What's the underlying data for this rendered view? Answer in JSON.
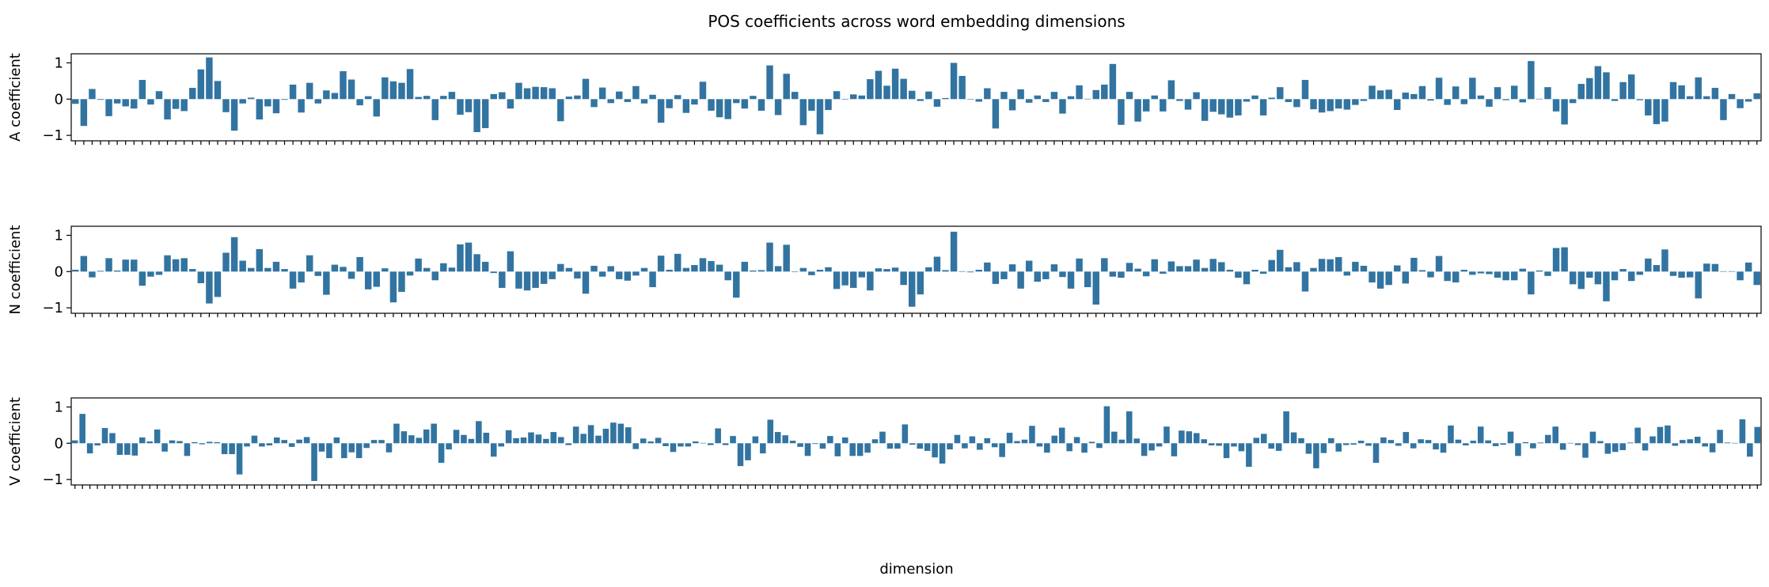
{
  "figure": {
    "title": "POS coefficients across word embedding dimensions",
    "xlabel": "dimension"
  },
  "colors": {
    "bar": "#3274a1"
  },
  "chart_data": [
    {
      "type": "bar",
      "ylabel": "A coefficient",
      "ylim": [
        -1.15,
        1.25
      ],
      "yticks": [
        -1,
        0,
        1
      ],
      "grid": false,
      "values": [
        -0.13,
        -0.74,
        0.28,
        -0.02,
        -0.47,
        -0.12,
        -0.2,
        -0.26,
        0.53,
        -0.15,
        0.22,
        -0.56,
        -0.27,
        -0.33,
        0.31,
        0.82,
        1.15,
        0.5,
        -0.36,
        -0.87,
        -0.12,
        0.04,
        -0.56,
        -0.2,
        -0.39,
        -0.02,
        0.4,
        -0.37,
        0.45,
        -0.12,
        0.24,
        0.17,
        0.77,
        0.54,
        -0.17,
        0.08,
        -0.48,
        0.6,
        0.49,
        0.45,
        0.83,
        0.06,
        0.09,
        -0.58,
        0.09,
        0.2,
        -0.43,
        -0.36,
        -0.91,
        -0.8,
        0.14,
        0.19,
        -0.26,
        0.45,
        0.3,
        0.34,
        0.33,
        0.3,
        -0.61,
        0.07,
        0.1,
        0.56,
        -0.22,
        0.32,
        -0.11,
        0.21,
        -0.08,
        0.36,
        -0.12,
        0.12,
        -0.65,
        -0.25,
        0.11,
        -0.38,
        -0.15,
        0.48,
        -0.32,
        -0.5,
        -0.55,
        -0.11,
        -0.26,
        0.09,
        -0.32,
        0.93,
        -0.44,
        0.7,
        0.2,
        -0.72,
        -0.32,
        -0.97,
        -0.3,
        0.22,
        -0.01,
        0.13,
        0.1,
        0.55,
        0.78,
        0.37,
        0.84,
        0.56,
        0.23,
        -0.05,
        0.21,
        -0.21,
        0.03,
        1.0,
        0.64,
        -0.01,
        -0.07,
        0.3,
        -0.81,
        0.2,
        -0.31,
        0.27,
        -0.1,
        0.1,
        -0.08,
        0.2,
        -0.4,
        0.08,
        0.38,
        0.01,
        0.25,
        0.4,
        0.97,
        -0.71,
        0.2,
        -0.62,
        -0.34,
        0.1,
        -0.34,
        0.52,
        -0.05,
        -0.29,
        0.19,
        -0.6,
        -0.35,
        -0.42,
        -0.51,
        -0.45,
        -0.07,
        0.1,
        -0.45,
        0.04,
        0.33,
        -0.08,
        -0.22,
        0.53,
        -0.28,
        -0.37,
        -0.33,
        -0.26,
        -0.29,
        -0.16,
        -0.05,
        0.37,
        0.24,
        0.26,
        -0.3,
        0.18,
        0.14,
        0.36,
        -0.04,
        0.59,
        -0.16,
        0.35,
        -0.14,
        0.59,
        0.1,
        -0.21,
        0.33,
        -0.03,
        0.37,
        -0.09,
        1.05,
        0.01,
        0.33,
        -0.34,
        -0.7,
        -0.11,
        0.42,
        0.58,
        0.91,
        0.74,
        -0.05,
        0.47,
        0.68,
        -0.03,
        -0.45,
        -0.69,
        -0.62,
        0.47,
        0.38,
        0.08,
        0.6,
        0.08,
        0.31,
        -0.58,
        0.14,
        -0.25,
        -0.07,
        0.16
      ]
    },
    {
      "type": "bar",
      "ylabel": "N coefficient",
      "ylim": [
        -1.15,
        1.25
      ],
      "yticks": [
        -1,
        0,
        1
      ],
      "grid": false,
      "values": [
        0.05,
        0.43,
        -0.16,
        0.02,
        0.37,
        0.03,
        0.33,
        0.33,
        -0.39,
        -0.14,
        -0.09,
        0.45,
        0.34,
        0.37,
        0.07,
        -0.32,
        -0.88,
        -0.7,
        0.52,
        0.95,
        0.3,
        0.1,
        0.62,
        0.1,
        0.27,
        0.07,
        -0.47,
        -0.3,
        0.45,
        -0.12,
        -0.64,
        0.19,
        0.13,
        -0.2,
        0.4,
        -0.49,
        -0.42,
        0.09,
        -0.85,
        -0.56,
        -0.11,
        0.36,
        0.1,
        -0.24,
        0.23,
        0.11,
        0.75,
        0.8,
        0.48,
        0.27,
        -0.04,
        -0.45,
        0.56,
        -0.47,
        -0.52,
        -0.45,
        -0.34,
        -0.21,
        0.21,
        0.1,
        -0.19,
        -0.61,
        0.16,
        -0.14,
        0.15,
        -0.21,
        -0.25,
        -0.11,
        0.1,
        -0.43,
        0.44,
        0.05,
        0.49,
        0.1,
        0.18,
        0.37,
        0.29,
        0.19,
        -0.24,
        -0.72,
        0.27,
        0.03,
        0.04,
        0.8,
        0.15,
        0.74,
        -0.01,
        0.1,
        -0.1,
        0.05,
        0.12,
        -0.48,
        -0.38,
        -0.45,
        -0.16,
        -0.52,
        0.09,
        0.07,
        0.11,
        -0.37,
        -0.97,
        -0.63,
        0.12,
        0.41,
        0.04,
        1.1,
        0.01,
        -0.02,
        0.05,
        0.25,
        -0.34,
        -0.21,
        0.2,
        -0.47,
        0.3,
        -0.28,
        -0.21,
        0.2,
        -0.15,
        -0.47,
        0.36,
        -0.43,
        -0.91,
        0.37,
        -0.14,
        -0.17,
        0.24,
        0.08,
        -0.13,
        0.34,
        -0.06,
        0.28,
        0.15,
        0.15,
        0.33,
        0.1,
        0.35,
        0.26,
        0.05,
        -0.17,
        -0.35,
        0.05,
        -0.06,
        0.32,
        0.6,
        0.12,
        0.26,
        -0.55,
        0.1,
        0.35,
        0.34,
        0.4,
        -0.11,
        0.27,
        0.16,
        -0.3,
        -0.47,
        -0.37,
        0.17,
        -0.33,
        0.38,
        0.04,
        -0.16,
        0.43,
        -0.26,
        -0.3,
        0.05,
        -0.09,
        -0.05,
        -0.07,
        -0.17,
        -0.24,
        -0.24,
        0.08,
        -0.63,
        0.03,
        -0.12,
        0.65,
        0.67,
        -0.35,
        -0.48,
        -0.17,
        -0.35,
        -0.82,
        -0.24,
        0.07,
        -0.26,
        -0.09,
        0.36,
        0.18,
        0.61,
        -0.12,
        -0.17,
        -0.16,
        -0.74,
        0.22,
        0.21,
        0.01,
        0.01,
        -0.24,
        0.25,
        -0.37
      ]
    },
    {
      "type": "bar",
      "ylabel": "V coefficient",
      "ylim": [
        -1.15,
        1.25
      ],
      "yticks": [
        -1,
        0,
        1
      ],
      "grid": false,
      "values": [
        0.08,
        0.81,
        -0.28,
        -0.06,
        0.42,
        0.28,
        -0.32,
        -0.32,
        -0.34,
        0.16,
        0.05,
        0.38,
        -0.23,
        0.08,
        0.06,
        -0.35,
        0.03,
        -0.03,
        0.04,
        0.03,
        -0.3,
        -0.3,
        -0.86,
        -0.09,
        0.21,
        -0.09,
        -0.06,
        0.16,
        0.09,
        -0.1,
        0.1,
        0.17,
        -1.04,
        -0.23,
        -0.41,
        0.16,
        -0.41,
        -0.25,
        -0.41,
        -0.13,
        0.09,
        0.09,
        -0.25,
        0.54,
        0.33,
        0.22,
        0.15,
        0.38,
        0.54,
        -0.54,
        -0.17,
        0.37,
        0.23,
        0.12,
        0.61,
        0.29,
        -0.37,
        -0.09,
        0.36,
        0.14,
        0.16,
        0.3,
        0.24,
        0.12,
        0.31,
        0.17,
        -0.05,
        0.46,
        0.26,
        0.5,
        0.21,
        0.4,
        0.57,
        0.54,
        0.44,
        -0.16,
        0.13,
        0.05,
        0.15,
        -0.08,
        -0.24,
        -0.09,
        -0.09,
        0.05,
        0.01,
        -0.05,
        0.41,
        -0.05,
        0.2,
        -0.63,
        -0.47,
        0.19,
        -0.28,
        0.65,
        0.31,
        0.22,
        0.07,
        -0.1,
        -0.35,
        -0.02,
        -0.15,
        0.2,
        -0.36,
        0.16,
        -0.35,
        -0.35,
        -0.26,
        0.11,
        0.32,
        -0.15,
        -0.15,
        0.52,
        -0.04,
        -0.15,
        -0.21,
        -0.39,
        -0.56,
        -0.17,
        0.23,
        -0.14,
        0.19,
        -0.18,
        0.14,
        -0.11,
        -0.38,
        0.29,
        0.06,
        0.1,
        0.48,
        -0.09,
        -0.26,
        0.21,
        0.43,
        -0.22,
        0.17,
        -0.26,
        0.04,
        -0.13,
        1.02,
        0.32,
        0.1,
        0.88,
        0.13,
        -0.35,
        -0.2,
        -0.09,
        0.46,
        -0.36,
        0.35,
        0.33,
        0.28,
        0.11,
        -0.06,
        -0.07,
        -0.41,
        -0.09,
        -0.22,
        -0.65,
        0.15,
        0.26,
        -0.15,
        -0.21,
        0.88,
        0.3,
        0.14,
        -0.29,
        -0.69,
        -0.27,
        0.14,
        -0.23,
        -0.05,
        -0.04,
        0.07,
        -0.07,
        -0.54,
        0.16,
        0.09,
        -0.07,
        0.31,
        -0.14,
        0.11,
        0.09,
        -0.17,
        -0.26,
        0.49,
        0.1,
        -0.06,
        0.07,
        0.46,
        0.08,
        -0.08,
        -0.04,
        0.32,
        -0.35,
        0.03,
        -0.14,
        0.02,
        0.23,
        0.46,
        -0.18,
        0.01,
        -0.05,
        -0.4,
        0.32,
        0.06,
        -0.29,
        -0.24,
        -0.19,
        0.02,
        0.43,
        -0.2,
        0.19,
        0.45,
        0.49,
        -0.07,
        0.09,
        0.11,
        0.18,
        -0.09,
        -0.25,
        0.37,
        0.02,
        0.01,
        0.66,
        -0.37,
        0.45
      ]
    }
  ]
}
